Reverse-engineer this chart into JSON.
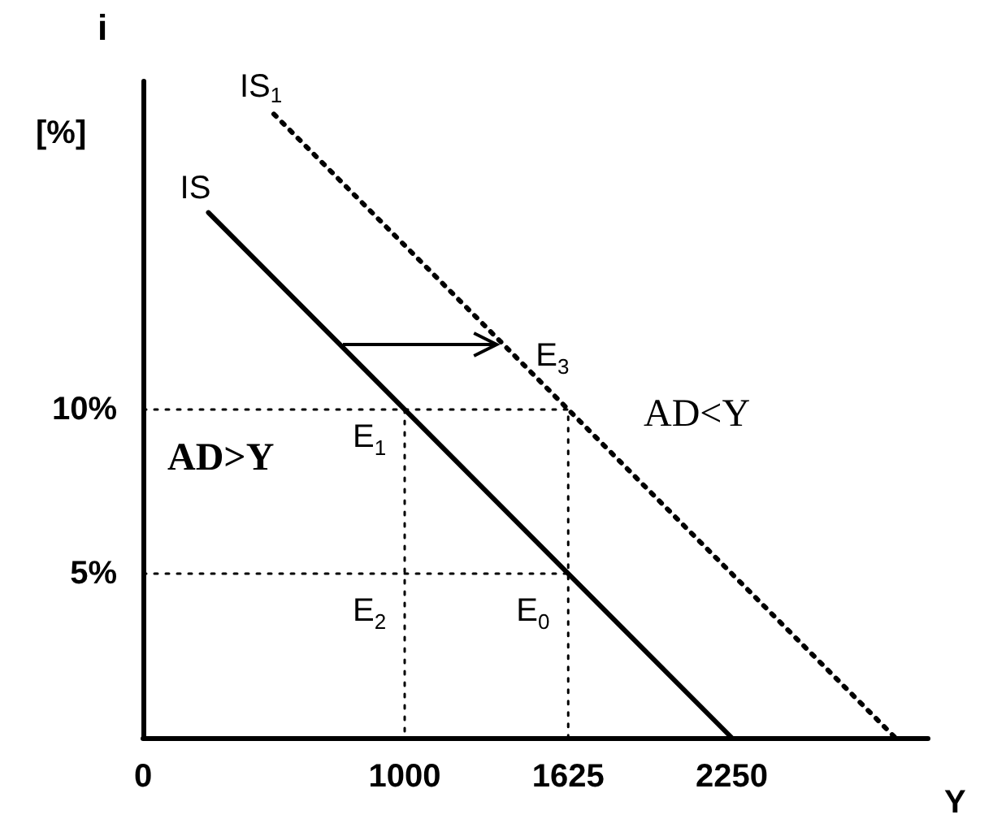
{
  "chart_data": {
    "type": "line",
    "ylabel": "i",
    "xlabel": "Y",
    "xlim": [
      0,
      3000
    ],
    "ylim": [
      0,
      20
    ],
    "xticks": [
      0,
      1000,
      1625,
      2250
    ],
    "yticks": [
      {
        "value": 5,
        "label": "5%"
      },
      {
        "value": 10,
        "label": "10%"
      }
    ],
    "grid": false,
    "legend": false,
    "marker": "none",
    "series": [
      {
        "name": "IS",
        "color": "#000000",
        "line_style": "solid",
        "x": [
          250,
          2250
        ],
        "values": [
          16,
          0
        ]
      },
      {
        "name": "IS$_{1}$",
        "color": "#000000",
        "line_style": "dotted",
        "x": [
          500,
          2875
        ],
        "values": [
          19,
          0
        ]
      },
      {
        "color": "#000000",
        "line_style": "dotted",
        "x": [
          0,
          1625,
          1625
        ],
        "values": [
          10,
          10,
          0
        ]
      },
      {
        "color": "#000000",
        "line_style": "dotted",
        "x": [
          0,
          1625
        ],
        "values": [
          5,
          5
        ]
      },
      {
        "color": "#000000",
        "line_style": "dotted",
        "x": [
          1000,
          1000
        ],
        "values": [
          10,
          0
        ]
      }
    ],
    "annotations": [
      "E$_{1}$",
      "E$_{2}$",
      "E$_{0}$",
      "E$_{3}$",
      "[%]",
      "AD>Y",
      "AD<Y"
    ]
  }
}
